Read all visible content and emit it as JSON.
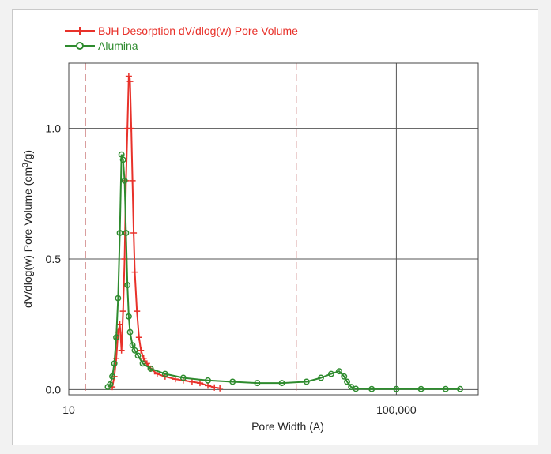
{
  "chart_data": {
    "type": "line",
    "title": "",
    "xlabel": "Pore Width (A)",
    "ylabel": "dV/dlog(w) Pore Volume (cm",
    "ylabel_sup": "3",
    "ylabel_end": "/g)",
    "x_scale": "log",
    "xlim": [
      10,
      1000000
    ],
    "ylim": [
      -0.02,
      1.25
    ],
    "x_ticks": [
      {
        "value": 10,
        "label": "10"
      },
      {
        "value": 100000,
        "label": "100,000"
      }
    ],
    "y_ticks": [
      {
        "value": 0.0,
        "label": "0.0"
      },
      {
        "value": 0.5,
        "label": "0.5"
      },
      {
        "value": 1.0,
        "label": "1.0"
      }
    ],
    "grid": true,
    "reference_lines_x": [
      16,
      6000
    ],
    "legend": "top-left",
    "series": [
      {
        "name": "BJH Desorption dV/dlog(w) Pore Volume",
        "color": "#e8312a",
        "marker": "plus",
        "x": [
          34,
          36,
          38,
          40,
          42,
          44,
          46,
          48,
          50,
          52,
          54,
          56,
          58,
          60,
          62,
          64,
          68,
          72,
          76,
          82,
          90,
          100,
          120,
          150,
          200,
          250,
          320,
          400,
          500,
          600,
          700
        ],
        "y": [
          0.01,
          0.05,
          0.12,
          0.22,
          0.25,
          0.15,
          0.3,
          0.5,
          0.8,
          1.0,
          1.2,
          1.18,
          1.0,
          0.8,
          0.6,
          0.45,
          0.3,
          0.2,
          0.15,
          0.12,
          0.1,
          0.08,
          0.06,
          0.05,
          0.04,
          0.035,
          0.03,
          0.025,
          0.015,
          0.008,
          0.005
        ]
      },
      {
        "name": "Alumina",
        "color": "#2e8b2e",
        "marker": "circle",
        "x": [
          30,
          32,
          34,
          36,
          38,
          40,
          42,
          44,
          46,
          48,
          50,
          52,
          54,
          56,
          60,
          64,
          70,
          80,
          100,
          150,
          250,
          500,
          1000,
          2000,
          4000,
          8000,
          12000,
          16000,
          20000,
          23000,
          25000,
          28000,
          32000,
          50000,
          100000,
          200000,
          400000,
          600000
        ],
        "y": [
          0.01,
          0.02,
          0.05,
          0.1,
          0.2,
          0.35,
          0.6,
          0.9,
          0.88,
          0.8,
          0.6,
          0.4,
          0.28,
          0.22,
          0.17,
          0.15,
          0.13,
          0.1,
          0.08,
          0.06,
          0.045,
          0.035,
          0.03,
          0.025,
          0.025,
          0.03,
          0.045,
          0.06,
          0.07,
          0.05,
          0.03,
          0.01,
          0.003,
          0.002,
          0.002,
          0.002,
          0.002,
          0.002
        ]
      }
    ]
  }
}
